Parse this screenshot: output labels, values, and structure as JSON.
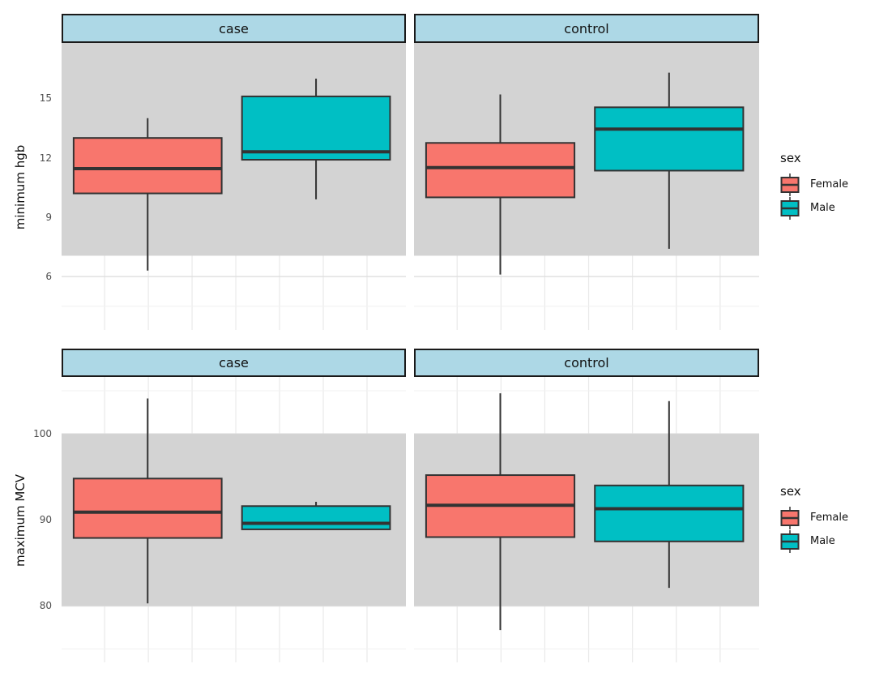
{
  "colors": {
    "female": "#F8766D",
    "male": "#00BFC4",
    "strip_fill": "#ADD8E6",
    "strip_border": "#1A1A1A",
    "ref_band": "#D3D3D3",
    "box_stroke": "#333333",
    "grid_major": "#E0E0E0",
    "grid_minor": "#F1F1F1",
    "grid_vertical": "#E9E9E9",
    "tick_label": "#4D4D4D"
  },
  "legend": {
    "title": "sex",
    "entries": [
      {
        "label": "Female",
        "color_key": "female"
      },
      {
        "label": "Male",
        "color_key": "male"
      }
    ],
    "position": "right"
  },
  "chart_data": [
    {
      "type": "boxplot",
      "ylabel": "minimum hgb",
      "facets": [
        "case",
        "control"
      ],
      "groups": [
        "Female",
        "Male"
      ],
      "yticks": [
        6,
        9,
        12,
        15
      ],
      "ylim": [
        3.3,
        17.8
      ],
      "ref_band": {
        "low": 7.05,
        "high": null
      },
      "grid": true,
      "series": [
        {
          "facet": "case",
          "group": "Female",
          "whisker_low": 6.3,
          "q1": 10.2,
          "median": 11.45,
          "q3": 13.0,
          "whisker_high": 14.0
        },
        {
          "facet": "case",
          "group": "Male",
          "whisker_low": 9.9,
          "q1": 11.9,
          "median": 12.3,
          "q3": 15.1,
          "whisker_high": 16.0
        },
        {
          "facet": "control",
          "group": "Female",
          "whisker_low": 6.1,
          "q1": 10.0,
          "median": 11.5,
          "q3": 12.75,
          "whisker_high": 15.2
        },
        {
          "facet": "control",
          "group": "Male",
          "whisker_low": 7.4,
          "q1": 11.35,
          "median": 13.45,
          "q3": 14.55,
          "whisker_high": 16.3
        }
      ]
    },
    {
      "type": "boxplot",
      "ylabel": "maximum MCV",
      "facets": [
        "case",
        "control"
      ],
      "groups": [
        "Female",
        "Male"
      ],
      "yticks": [
        80,
        90,
        100
      ],
      "ylim": [
        73.45,
        106.6
      ],
      "ref_band": {
        "low": 80,
        "high": 100
      },
      "grid": true,
      "series": [
        {
          "facet": "case",
          "group": "Female",
          "whisker_low": 80.3,
          "q1": 87.9,
          "median": 90.9,
          "q3": 94.8,
          "whisker_high": 104.1
        },
        {
          "facet": "case",
          "group": "Male",
          "whisker_low": 88.9,
          "q1": 88.9,
          "median": 89.6,
          "q3": 91.6,
          "whisker_high": 92.1
        },
        {
          "facet": "control",
          "group": "Female",
          "whisker_low": 77.2,
          "q1": 88.0,
          "median": 91.7,
          "q3": 95.2,
          "whisker_high": 104.7
        },
        {
          "facet": "control",
          "group": "Male",
          "whisker_low": 82.1,
          "q1": 87.5,
          "median": 91.3,
          "q3": 94.0,
          "whisker_high": 103.8
        }
      ]
    }
  ]
}
